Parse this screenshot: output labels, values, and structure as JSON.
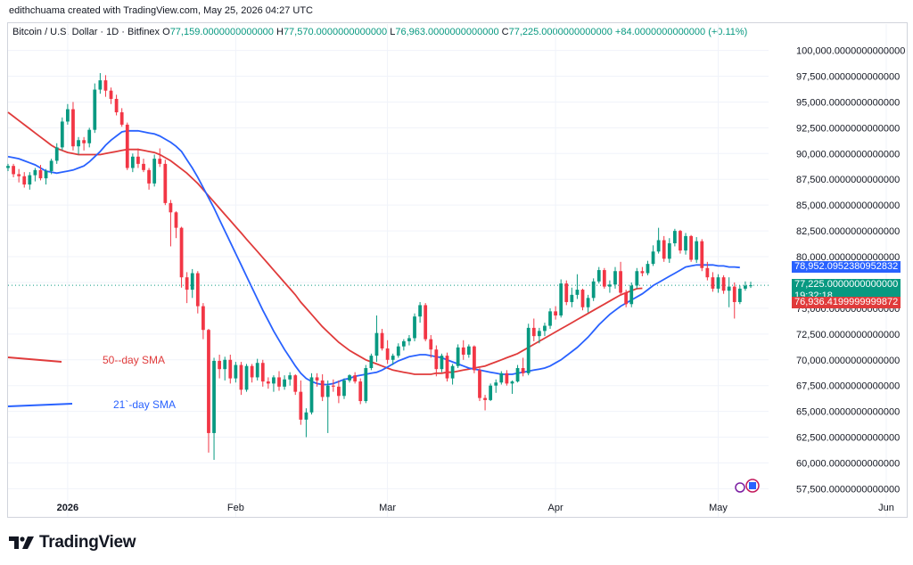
{
  "header": {
    "credit": "edithchuama created with TradingView.com, May 25, 2026 04:27 UTC"
  },
  "legend": {
    "symbol": "Bitcoin / U.S. Dollar · 1D · Bitfinex",
    "o_label": "O",
    "o_value": "77,159.0000000000000",
    "h_label": "H",
    "h_value": "77,570.0000000000000",
    "l_label": "L",
    "l_value": "76,963.0000000000000",
    "c_label": "C",
    "c_value": "77,225.0000000000000",
    "change": "+84.0000000000000 (+0.11%)"
  },
  "tags": {
    "sma21_value": "78,952.0952380952832",
    "price_value": "77,225.0000000000000",
    "countdown": "19:32:18",
    "sma50_value": "76,936.4199999999872"
  },
  "footer": {
    "brand": "TradingView"
  },
  "colors": {
    "up": "#089981",
    "down": "#f23645",
    "sma21": "#2962ff",
    "sma50": "#e03b3b",
    "grid": "#f0f3fa"
  },
  "chart_data": {
    "type": "candlestick",
    "title": "Bitcoin / U.S. Dollar · 1D · Bitfinex",
    "ylim": [
      56500,
      101000
    ],
    "yticks": [
      "100,000.0000000000000",
      "97,500.0000000000000",
      "95,000.0000000000000",
      "92,500.0000000000000",
      "90,000.0000000000000",
      "87,500.0000000000000",
      "85,000.0000000000000",
      "82,500.0000000000000",
      "80,000.0000000000000",
      "77,500.0000000000000",
      "75,000.0000000000000",
      "72,500.0000000000000",
      "70,000.0000000000000",
      "67,500.0000000000000",
      "65,000.0000000000000",
      "62,500.0000000000000",
      "60,000.0000000000000",
      "57,500.0000000000000"
    ],
    "xticks": [
      {
        "label": "2026",
        "date": "2026-01-01"
      },
      {
        "label": "Feb",
        "date": "2026-02-01"
      },
      {
        "label": "Mar",
        "date": "2026-03-01"
      },
      {
        "label": "Apr",
        "date": "2026-04-01"
      },
      {
        "label": "May",
        "date": "2026-05-01"
      },
      {
        "label": "Jun",
        "date": "2026-06-01"
      }
    ],
    "candles": [
      [
        88600,
        89000,
        88300,
        88800
      ],
      [
        88800,
        89000,
        87700,
        88000
      ],
      [
        88000,
        88500,
        87200,
        87800
      ],
      [
        87800,
        88200,
        86700,
        87000
      ],
      [
        87000,
        88200,
        86500,
        87900
      ],
      [
        87900,
        88600,
        87300,
        88400
      ],
      [
        88400,
        88900,
        87400,
        87600
      ],
      [
        87600,
        88500,
        87000,
        88300
      ],
      [
        88300,
        89500,
        88000,
        89300
      ],
      [
        89300,
        91000,
        89000,
        90600
      ],
      [
        90600,
        93500,
        90300,
        93100
      ],
      [
        93100,
        94800,
        92800,
        94300
      ],
      [
        94300,
        95000,
        90300,
        90700
      ],
      [
        90700,
        91600,
        89900,
        91300
      ],
      [
        91300,
        91600,
        90300,
        91000
      ],
      [
        91000,
        92500,
        90600,
        92300
      ],
      [
        92300,
        96800,
        92000,
        96200
      ],
      [
        96200,
        97800,
        95800,
        97100
      ],
      [
        97100,
        97600,
        95500,
        96100
      ],
      [
        96100,
        96400,
        94800,
        95300
      ],
      [
        95300,
        95700,
        93700,
        94000
      ],
      [
        94000,
        94400,
        92600,
        92800
      ],
      [
        92800,
        93000,
        88400,
        88600
      ],
      [
        88600,
        90000,
        88200,
        89700
      ],
      [
        89700,
        90500,
        88600,
        89000
      ],
      [
        89000,
        89500,
        88200,
        88400
      ],
      [
        88400,
        88600,
        86500,
        87100
      ],
      [
        87100,
        89900,
        86800,
        89500
      ],
      [
        89500,
        90500,
        88700,
        89000
      ],
      [
        89000,
        89400,
        85000,
        85200
      ],
      [
        85200,
        85500,
        81000,
        84300
      ],
      [
        84300,
        84400,
        81800,
        82800
      ],
      [
        82800,
        82900,
        77000,
        78000
      ],
      [
        78000,
        78500,
        75500,
        76800
      ],
      [
        76800,
        78800,
        76000,
        78400
      ],
      [
        78400,
        78600,
        74500,
        75200
      ],
      [
        75200,
        75500,
        72000,
        72900
      ],
      [
        72900,
        73000,
        61000,
        62900
      ],
      [
        62900,
        70200,
        60300,
        69900
      ],
      [
        69900,
        70500,
        68200,
        69100
      ],
      [
        69100,
        70300,
        68000,
        70000
      ],
      [
        70000,
        70500,
        67700,
        68200
      ],
      [
        68200,
        69800,
        67800,
        69500
      ],
      [
        69500,
        69800,
        66600,
        67100
      ],
      [
        67100,
        69600,
        66900,
        69400
      ],
      [
        69400,
        69600,
        67800,
        68300
      ],
      [
        68300,
        70100,
        68000,
        69700
      ],
      [
        69700,
        70000,
        67400,
        67900
      ],
      [
        67900,
        68300,
        67200,
        67700
      ],
      [
        67700,
        68500,
        66900,
        68300
      ],
      [
        68300,
        68900,
        67000,
        67400
      ],
      [
        67400,
        68500,
        67100,
        68100
      ],
      [
        68100,
        68800,
        67500,
        68500
      ],
      [
        68500,
        68600,
        66600,
        66900
      ],
      [
        66900,
        68000,
        63700,
        64200
      ],
      [
        64200,
        65300,
        62500,
        64900
      ],
      [
        64900,
        68700,
        64700,
        68300
      ],
      [
        68300,
        68700,
        67400,
        68000
      ],
      [
        68000,
        68600,
        66000,
        66400
      ],
      [
        66400,
        68000,
        62900,
        67500
      ],
      [
        67500,
        68100,
        66900,
        67400
      ],
      [
        67400,
        68000,
        65800,
        66500
      ],
      [
        66500,
        68200,
        66200,
        68000
      ],
      [
        68000,
        68600,
        67800,
        68500
      ],
      [
        68500,
        68800,
        67700,
        67900
      ],
      [
        67900,
        68200,
        65700,
        66000
      ],
      [
        66000,
        69500,
        65800,
        69200
      ],
      [
        69200,
        70600,
        69000,
        70400
      ],
      [
        70400,
        74300,
        69800,
        72600
      ],
      [
        72600,
        73000,
        70900,
        71100
      ],
      [
        71100,
        71900,
        69600,
        70000
      ],
      [
        70000,
        70600,
        69500,
        70400
      ],
      [
        70400,
        71600,
        70200,
        71300
      ],
      [
        71300,
        72000,
        70900,
        71800
      ],
      [
        71800,
        72400,
        71400,
        72100
      ],
      [
        72100,
        74500,
        71800,
        74200
      ],
      [
        74200,
        75600,
        73600,
        75300
      ],
      [
        75300,
        75500,
        71800,
        72000
      ],
      [
        72000,
        72400,
        70200,
        71000
      ],
      [
        71000,
        71400,
        68400,
        69100
      ],
      [
        69100,
        70600,
        68800,
        70400
      ],
      [
        70400,
        70700,
        67900,
        68200
      ],
      [
        68200,
        69600,
        67600,
        69400
      ],
      [
        69400,
        71500,
        69200,
        71200
      ],
      [
        71200,
        71900,
        70000,
        70500
      ],
      [
        70500,
        71500,
        70200,
        71300
      ],
      [
        71300,
        71400,
        68700,
        69000
      ],
      [
        69000,
        69200,
        66000,
        66300
      ],
      [
        66300,
        66600,
        65100,
        66100
      ],
      [
        66100,
        67700,
        66000,
        67500
      ],
      [
        67500,
        68100,
        66800,
        67800
      ],
      [
        67800,
        68900,
        67600,
        68700
      ],
      [
        68700,
        69000,
        67500,
        67700
      ],
      [
        67700,
        68000,
        66700,
        67900
      ],
      [
        67900,
        69500,
        67800,
        69200
      ],
      [
        69200,
        70200,
        68400,
        68700
      ],
      [
        68700,
        73500,
        68500,
        73100
      ],
      [
        73100,
        74000,
        71800,
        72300
      ],
      [
        72300,
        73100,
        71600,
        72800
      ],
      [
        72800,
        73600,
        72300,
        73300
      ],
      [
        73300,
        75000,
        73000,
        74700
      ],
      [
        74700,
        75200,
        73900,
        74300
      ],
      [
        74300,
        77800,
        74100,
        77400
      ],
      [
        77400,
        77700,
        75300,
        75600
      ],
      [
        75600,
        77000,
        75100,
        76300
      ],
      [
        76300,
        78300,
        75900,
        76800
      ],
      [
        76800,
        76900,
        74800,
        75100
      ],
      [
        75100,
        76300,
        74600,
        76000
      ],
      [
        76000,
        77900,
        75700,
        77600
      ],
      [
        77600,
        79000,
        77400,
        78700
      ],
      [
        78700,
        78900,
        76900,
        77100
      ],
      [
        77100,
        77700,
        76500,
        77300
      ],
      [
        77300,
        79000,
        76900,
        78600
      ],
      [
        78600,
        79500,
        76200,
        76500
      ],
      [
        76500,
        76800,
        75100,
        75400
      ],
      [
        75400,
        77500,
        75100,
        77200
      ],
      [
        77200,
        78900,
        76900,
        78600
      ],
      [
        78600,
        79000,
        78100,
        78400
      ],
      [
        78400,
        79600,
        78200,
        79300
      ],
      [
        79300,
        81100,
        79100,
        80500
      ],
      [
        80500,
        82800,
        80300,
        81600
      ],
      [
        81600,
        82000,
        79500,
        79800
      ],
      [
        79800,
        81800,
        79400,
        81300
      ],
      [
        81300,
        82700,
        81000,
        82500
      ],
      [
        82500,
        82600,
        80300,
        80600
      ],
      [
        80600,
        82300,
        80200,
        82000
      ],
      [
        82000,
        82100,
        79500,
        79700
      ],
      [
        79700,
        81900,
        79400,
        81500
      ],
      [
        81500,
        81700,
        78600,
        78900
      ],
      [
        78900,
        79500,
        77700,
        78000
      ],
      [
        78000,
        78500,
        76600,
        76900
      ],
      [
        76900,
        78300,
        76500,
        78000
      ],
      [
        78000,
        78200,
        76400,
        76700
      ],
      [
        76700,
        78000,
        75100,
        77100
      ],
      [
        77100,
        77500,
        74000,
        75600
      ],
      [
        75600,
        77200,
        75400,
        76900
      ],
      [
        76900,
        77600,
        76700,
        77200
      ],
      [
        77159,
        77570,
        76963,
        77225
      ]
    ],
    "sma21": [
      89700,
      89600,
      89500,
      89300,
      89100,
      88900,
      88600,
      88300,
      88200,
      88100,
      88200,
      88300,
      88400,
      88600,
      88800,
      89200,
      89700,
      90200,
      90800,
      91300,
      91700,
      92100,
      92200,
      92200,
      92200,
      92100,
      92000,
      91900,
      91700,
      91400,
      91100,
      90700,
      90200,
      89400,
      88600,
      87700,
      86700,
      85700,
      84700,
      83600,
      82500,
      81400,
      80300,
      79200,
      78100,
      77000,
      75900,
      74800,
      73800,
      72800,
      71900,
      71000,
      70200,
      69400,
      68700,
      68200,
      67900,
      67700,
      67600,
      67600,
      67700,
      67900,
      68100,
      68200,
      68400,
      68500,
      68600,
      68700,
      68800,
      69000,
      69300,
      69600,
      69900,
      70100,
      70300,
      70400,
      70500,
      70500,
      70400,
      70300,
      70200,
      70000,
      69800,
      69600,
      69400,
      69200,
      69100,
      69000,
      68900,
      68800,
      68700,
      68600,
      68600,
      68600,
      68700,
      68800,
      68900,
      69000,
      69100,
      69200,
      69400,
      69700,
      70000,
      70400,
      70800,
      71200,
      71700,
      72200,
      72800,
      73400,
      73900,
      74400,
      74800,
      75200,
      75500,
      75800,
      76100,
      76400,
      76800,
      77200,
      77500,
      77800,
      78100,
      78400,
      78700,
      79000,
      79100,
      79200,
      79200,
      79200,
      79200,
      79100,
      79100,
      79000,
      79000,
      78952
    ],
    "sma50": [
      94000,
      93600,
      93200,
      92800,
      92400,
      92000,
      91600,
      91200,
      90800,
      90500,
      90300,
      90100,
      90000,
      89900,
      89900,
      89900,
      89900,
      89900,
      90000,
      90100,
      90200,
      90300,
      90400,
      90400,
      90400,
      90300,
      90200,
      90100,
      89900,
      89600,
      89300,
      88900,
      88500,
      88100,
      87600,
      87100,
      86500,
      85900,
      85300,
      84700,
      84100,
      83500,
      82900,
      82300,
      81700,
      81100,
      80500,
      79900,
      79300,
      78700,
      78100,
      77500,
      76900,
      76300,
      75600,
      75000,
      74400,
      73800,
      73200,
      72700,
      72200,
      71700,
      71300,
      70900,
      70600,
      70300,
      70000,
      69800,
      69600,
      69400,
      69200,
      69000,
      68900,
      68800,
      68700,
      68600,
      68600,
      68600,
      68600,
      68700,
      68700,
      68800,
      68800,
      68900,
      69000,
      69100,
      69200,
      69300,
      69400,
      69600,
      69800,
      70000,
      70200,
      70400,
      70600,
      70900,
      71200,
      71500,
      71800,
      72100,
      72400,
      72700,
      73000,
      73300,
      73600,
      73900,
      74200,
      74500,
      74800,
      75100,
      75400,
      75700,
      76000,
      76300,
      76500,
      76700,
      76900,
      76936
    ],
    "series_labels": [
      {
        "name": "50--day SMA",
        "color": "#e03b3b"
      },
      {
        "name": "21`-day SMA",
        "color": "#2962ff"
      }
    ]
  }
}
